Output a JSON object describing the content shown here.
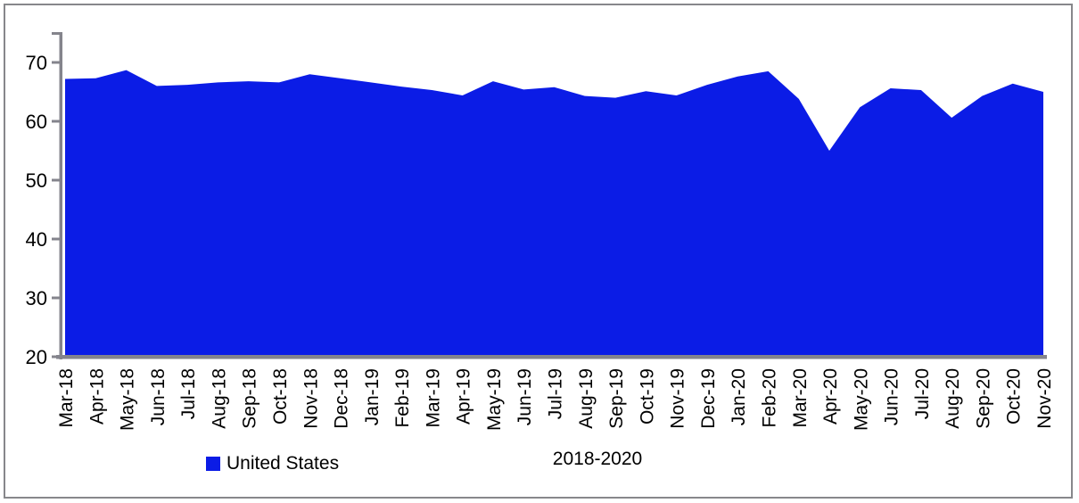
{
  "chart_data": {
    "type": "area",
    "title": "",
    "xlabel": "2018-2020",
    "ylabel": "",
    "ylim": [
      20,
      75
    ],
    "yticks": [
      70,
      60,
      50,
      40,
      30,
      20
    ],
    "grid": false,
    "legend_position": "bottom-left",
    "categories": [
      "Mar-18",
      "Apr-18",
      "May-18",
      "Jun-18",
      "Jul-18",
      "Aug-18",
      "Sep-18",
      "Oct-18",
      "Nov-18",
      "Dec-18",
      "Jan-19",
      "Feb-19",
      "Mar-19",
      "Apr-19",
      "May-19",
      "Jun-19",
      "Jul-19",
      "Aug-19",
      "Sep-19",
      "Oct-19",
      "Nov-19",
      "Dec-19",
      "Jan-20",
      "Feb-20",
      "Mar-20",
      "Apr-20",
      "May-20",
      "Jun-20",
      "Jul-20",
      "Aug-20",
      "Sep-20",
      "Oct-20",
      "Nov-20"
    ],
    "series": [
      {
        "name": "United States",
        "values": [
          67.2,
          67.3,
          68.7,
          66.0,
          66.2,
          66.6,
          66.8,
          66.6,
          68.0,
          67.3,
          66.6,
          65.9,
          65.3,
          64.4,
          66.8,
          65.4,
          65.8,
          64.3,
          64.0,
          65.1,
          64.4,
          66.2,
          67.6,
          68.5,
          63.8,
          55.0,
          62.4,
          65.6,
          65.3,
          60.6,
          64.3,
          66.4,
          65.0
        ]
      }
    ],
    "baseline": 20
  },
  "legend": {
    "label": "United States"
  },
  "colors": {
    "series_fill": "#0b1ce6",
    "axis": "#84848c",
    "text": "#000000",
    "frame_border": "#87878b"
  }
}
